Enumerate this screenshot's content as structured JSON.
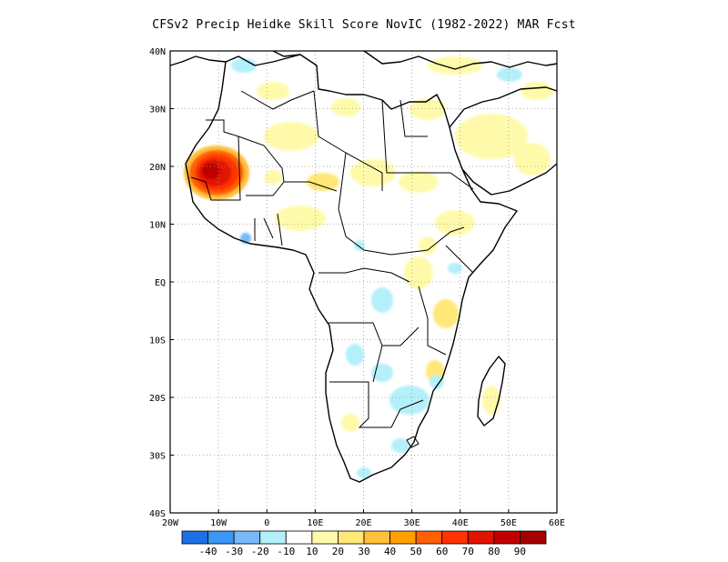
{
  "title": "CFSv2 Precip Heidke Skill Score NovIC (1982-2022) MAR Fcst",
  "map": {
    "lat_labels": [
      "40N",
      "30N",
      "20N",
      "10N",
      "EQ",
      "10S",
      "20S",
      "30S",
      "40S"
    ],
    "lat_values": [
      40,
      30,
      20,
      10,
      0,
      -10,
      -20,
      -30,
      -40
    ],
    "lon_labels": [
      "20W",
      "10W",
      "0",
      "10E",
      "20E",
      "30E",
      "40E",
      "50E",
      "60E"
    ],
    "lon_values": [
      -20,
      -10,
      0,
      10,
      20,
      30,
      40,
      50,
      60
    ],
    "lon_range": [
      -20,
      60
    ],
    "lat_range": [
      -40,
      40
    ],
    "gridlines": "dotted"
  },
  "colorbar": {
    "labels": [
      "-40",
      "-30",
      "-20",
      "-10",
      "10",
      "20",
      "30",
      "40",
      "50",
      "60",
      "70",
      "80",
      "90"
    ],
    "colors": [
      "#1e6ee6",
      "#3c96f5",
      "#78b9fa",
      "#b4f0fa",
      "#ffffff",
      "#fffaaa",
      "#ffe878",
      "#ffc03c",
      "#ffa000",
      "#ff6000",
      "#ff3200",
      "#e11400",
      "#c00000",
      "#a50000"
    ]
  },
  "colors": {
    "coast": "#000000",
    "grid": "#9a9a9a"
  }
}
